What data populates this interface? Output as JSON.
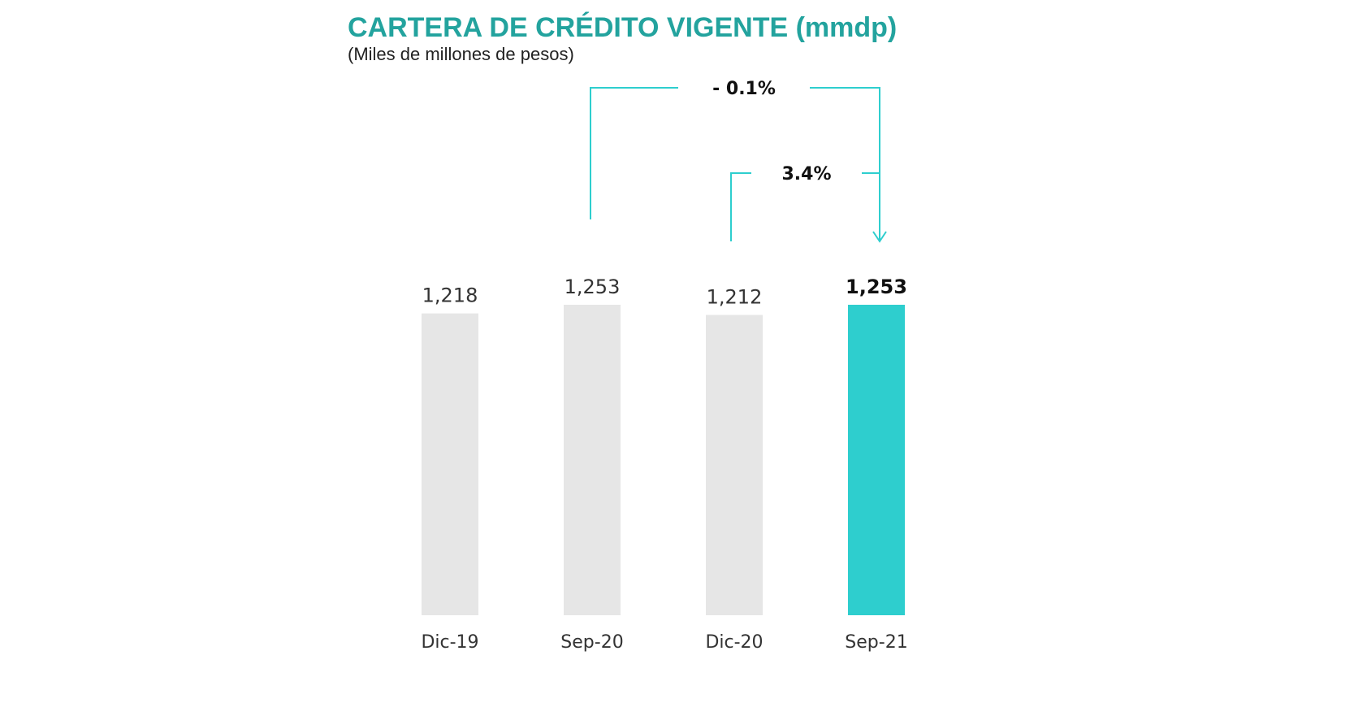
{
  "chart_data": {
    "type": "bar",
    "title": "CARTERA DE CRÉDITO VIGENTE (mmdp)",
    "subtitle": "(Miles de millones de pesos)",
    "categories": [
      "Dic-19",
      "Sep-20",
      "Dic-20",
      "Sep-21"
    ],
    "values": [
      1218,
      1253,
      1212,
      1253
    ],
    "value_labels": [
      "1,218",
      "1,253",
      "1,212",
      "1,253"
    ],
    "highlight_index": 3,
    "ylim": [
      0,
      1253
    ],
    "grid": false,
    "changes": [
      {
        "label": "- 0.1%",
        "from": "Sep-20",
        "to": "Sep-21"
      },
      {
        "label": "3.4%",
        "from": "Dic-20",
        "to": "Sep-21"
      }
    ],
    "colors": {
      "title": "#23a39e",
      "bar_default": "#e6e6e6",
      "bar_highlight": "#2ecece",
      "bracket": "#2ecece"
    }
  }
}
